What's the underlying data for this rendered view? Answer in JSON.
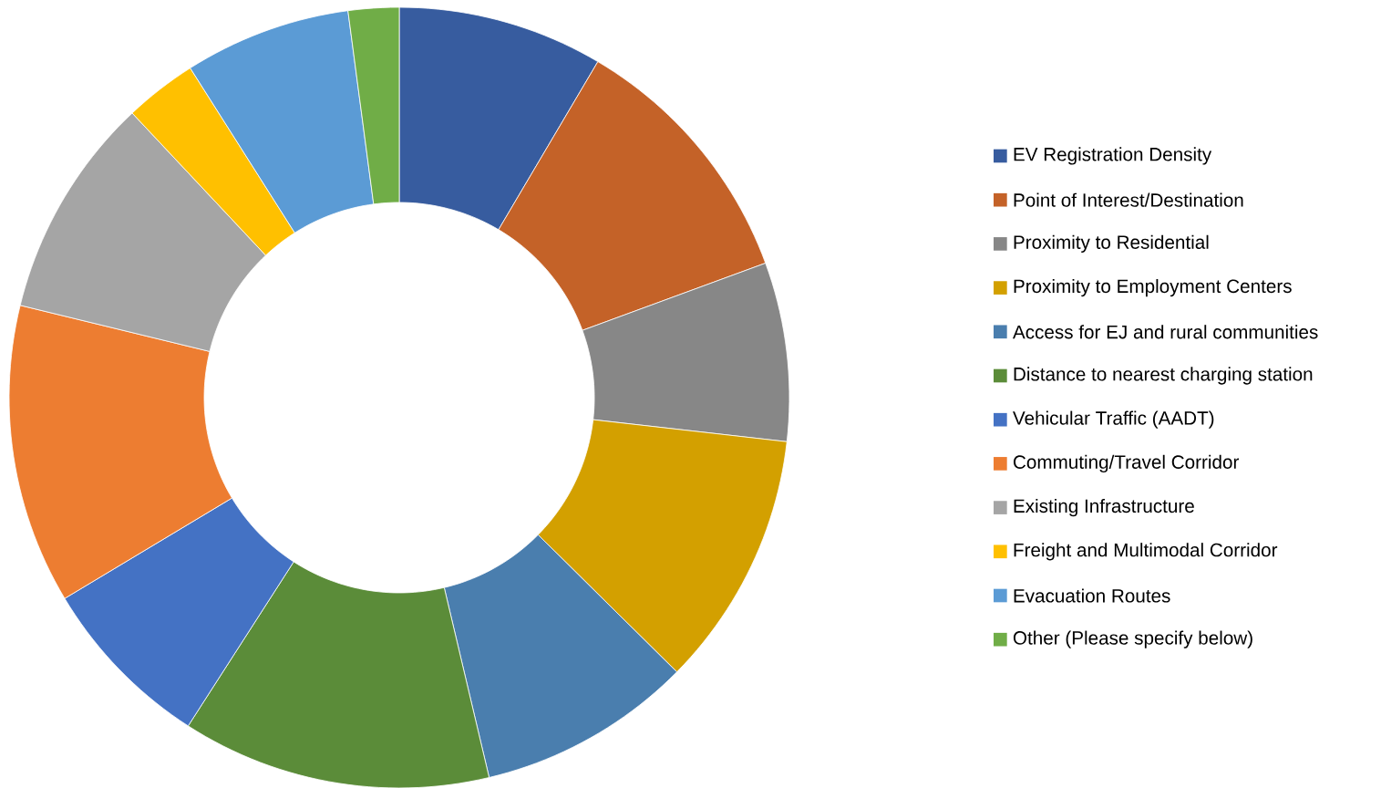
{
  "chart_data": {
    "type": "donut",
    "categories": [
      "EV Registration Density",
      "Point of Interest/Destination",
      "Proximity to Residential",
      "Proximity to Employment Centers",
      "Access for EJ and rural communities",
      "Distance to nearest charging station",
      "Vehicular Traffic (AADT)",
      "Commuting/Travel Corridor",
      "Existing Infrastructure",
      "Freight and Multimodal Corridor",
      "Evacuation Routes",
      "Other (Please specify below)"
    ],
    "values": [
      8.5,
      10.9,
      7.4,
      10.6,
      8.9,
      12.8,
      7.3,
      12.4,
      9.2,
      3.0,
      6.9,
      2.1
    ],
    "colors": [
      "#375c9f",
      "#c46228",
      "#878787",
      "#d3a000",
      "#4a7eae",
      "#5b8c39",
      "#4472c4",
      "#ed7d31",
      "#a5a5a5",
      "#ffc000",
      "#5b9bd5",
      "#70ad47"
    ],
    "legend": "right"
  }
}
